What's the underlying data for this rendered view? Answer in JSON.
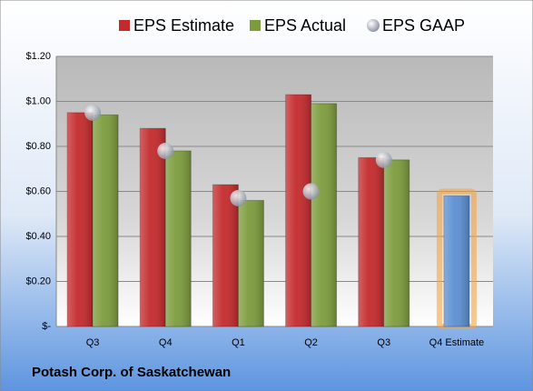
{
  "chart_data": {
    "type": "bar",
    "categories": [
      "Q3",
      "Q4",
      "Q1",
      "Q2",
      "Q3",
      "Q4 Estimate"
    ],
    "series": [
      {
        "name": "EPS Estimate",
        "color": "#c42a2c",
        "values": [
          0.95,
          0.88,
          0.63,
          1.03,
          0.75,
          0.58
        ],
        "point_colors": [
          null,
          null,
          null,
          null,
          null,
          "#5b8fd2"
        ]
      },
      {
        "name": "EPS Actual",
        "color": "#7c9c3c",
        "values": [
          0.94,
          0.78,
          0.56,
          0.99,
          0.74,
          null
        ]
      },
      {
        "name": "EPS GAAP",
        "color": "#b4b8c4",
        "marker": "circle",
        "values": [
          0.95,
          0.78,
          0.57,
          0.6,
          0.74,
          null
        ]
      }
    ],
    "ylim": [
      0,
      1.2
    ],
    "yticks": [
      {
        "value": 0,
        "label": "$-"
      },
      {
        "value": 0.2,
        "label": "$0.20"
      },
      {
        "value": 0.4,
        "label": "$0.40"
      },
      {
        "value": 0.6,
        "label": "$0.60"
      },
      {
        "value": 0.8,
        "label": "$0.80"
      },
      {
        "value": 1.0,
        "label": "$1.00"
      },
      {
        "value": 1.2,
        "label": "$1.20"
      }
    ],
    "grid": true,
    "caption": "Potash Corp. of Saskatchewan"
  }
}
